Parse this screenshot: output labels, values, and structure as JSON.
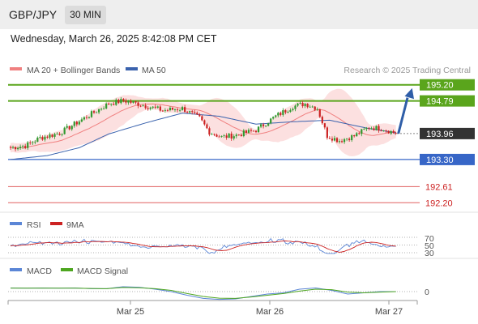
{
  "header": {
    "symbol": "GBP/JPY",
    "timeframe": "30 MIN",
    "datetime": "Wednesday, March 26, 2025 8:42:08 PM CET"
  },
  "legend": {
    "ma20": "MA 20 + Bollinger Bands",
    "ma50": "MA 50",
    "credit": "Research © 2025 Trading Central",
    "rsi": "RSI",
    "rsi_ma": "9MA",
    "macd": "MACD",
    "macd_signal": "MACD Signal"
  },
  "colors": {
    "ma20": "#f08080",
    "ma50": "#3a62ad",
    "bands": "#fbd5d5",
    "bull": "#2f9a2f",
    "bear": "#cc2222",
    "resistance": "#5aa51c",
    "support": "#3766c7",
    "weak": "#e06060",
    "current": "#333333",
    "rsi": "#5b86d6",
    "macd_signal": "#4ea620"
  },
  "chart_data": [
    {
      "type": "candlestick",
      "title": "GBP/JPY 30 MIN",
      "x_ticks": [
        "Mar 25",
        "Mar 26",
        "Mar 27"
      ],
      "ylim": [
        192.0,
        195.4
      ],
      "start": 193.62,
      "close": 193.96,
      "levels": [
        {
          "value": 195.2,
          "label": "195.20",
          "kind": "resistance"
        },
        {
          "value": 194.79,
          "label": "194.79",
          "kind": "resistance"
        },
        {
          "value": 193.96,
          "label": "193.96",
          "kind": "current"
        },
        {
          "value": 193.3,
          "label": "193.30",
          "kind": "support"
        },
        {
          "value": 192.61,
          "label": "192.61",
          "kind": "weak"
        },
        {
          "value": 192.2,
          "label": "192.20",
          "kind": "weak"
        }
      ],
      "anchors": [
        [
          0,
          193.6
        ],
        [
          6,
          193.65
        ],
        [
          12,
          193.85
        ],
        [
          20,
          193.97
        ],
        [
          26,
          194.2
        ],
        [
          34,
          194.5
        ],
        [
          40,
          194.72
        ],
        [
          46,
          194.8
        ],
        [
          53,
          194.7
        ],
        [
          62,
          194.55
        ],
        [
          70,
          194.6
        ],
        [
          77,
          194.35
        ],
        [
          81,
          194.0
        ],
        [
          86,
          193.87
        ],
        [
          92,
          193.92
        ],
        [
          100,
          194.05
        ],
        [
          108,
          194.4
        ],
        [
          115,
          194.65
        ],
        [
          120,
          194.72
        ],
        [
          125,
          194.6
        ],
        [
          129,
          193.9
        ],
        [
          134,
          193.78
        ],
        [
          140,
          193.9
        ],
        [
          146,
          194.12
        ],
        [
          152,
          194.08
        ],
        [
          157,
          193.96
        ]
      ],
      "ma50": [
        [
          0,
          193.3
        ],
        [
          15,
          193.4
        ],
        [
          28,
          193.6
        ],
        [
          40,
          193.95
        ],
        [
          55,
          194.23
        ],
        [
          70,
          194.48
        ],
        [
          85,
          194.4
        ],
        [
          100,
          194.2
        ],
        [
          115,
          194.26
        ],
        [
          130,
          194.3
        ],
        [
          145,
          194.1
        ],
        [
          157,
          193.98
        ]
      ],
      "forecast": {
        "from": 193.96,
        "to": 195.18
      }
    },
    {
      "type": "line",
      "title": "RSI",
      "ylim": [
        30,
        70
      ],
      "levels": [
        70,
        50,
        30
      ],
      "level_labels": [
        "70",
        "50",
        "30"
      ],
      "rsi_ma_label": "9MA"
    },
    {
      "type": "line",
      "title": "MACD",
      "zero_label": "0",
      "macd": [
        0.15,
        0.14,
        0.15,
        0.14,
        0.15,
        0.12,
        0.12,
        0.2,
        0.18,
        0.1,
        0.0,
        -0.15,
        -0.28,
        -0.32,
        -0.3,
        -0.2,
        -0.1,
        -0.05,
        0.1,
        0.15,
        0.05,
        -0.1,
        -0.05,
        0.0,
        0.0
      ],
      "macd_signal": [
        0.14,
        0.14,
        0.14,
        0.14,
        0.14,
        0.13,
        0.12,
        0.17,
        0.16,
        0.12,
        0.05,
        -0.08,
        -0.2,
        -0.27,
        -0.28,
        -0.22,
        -0.15,
        -0.08,
        0.02,
        0.1,
        0.08,
        -0.02,
        -0.05,
        -0.02,
        0.0
      ]
    }
  ]
}
